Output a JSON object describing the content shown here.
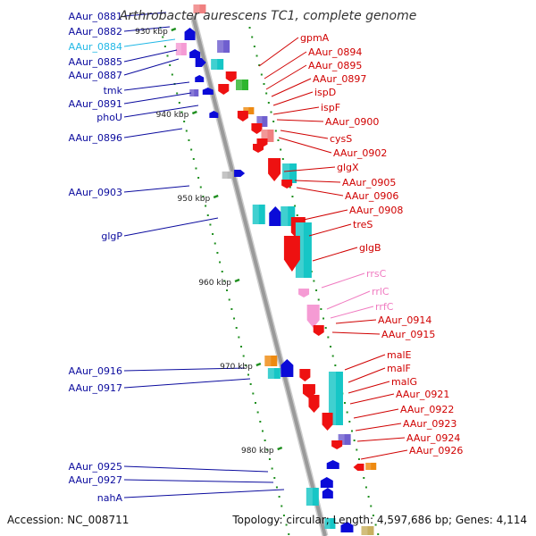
{
  "title": "Arthrobacter aurescens TC1, complete genome",
  "accession_text": "Accession: NC_008711",
  "summary_text": "Topology: circular; Length: 4,597,686 bp; Genes: 4,114",
  "colors": {
    "backbone": "#9a9a9a",
    "blue": "#0b0bd8",
    "red": "#ee1111",
    "cyan": "#16c6c6",
    "pink": "#f59bd4",
    "green": "#2fb52f",
    "orange": "#ee8a11",
    "purple": "#6f5fcf",
    "salmon": "#f08080",
    "ticks": "#1f8f1f",
    "label_blue": "#0b0b9e",
    "label_red": "#d00000",
    "label_cyan": "#22b8e6",
    "label_pink": "#f07ac0"
  },
  "scale_ticks": [
    "930 kbp",
    "940 kbp",
    "950 kbp",
    "960 kbp",
    "970 kbp",
    "980 kbp"
  ],
  "left_labels": [
    {
      "text": "AAur_0881",
      "color": "label_blue"
    },
    {
      "text": "AAur_0882",
      "color": "label_blue"
    },
    {
      "text": "AAur_0884",
      "color": "label_cyan"
    },
    {
      "text": "AAur_0885",
      "color": "label_blue"
    },
    {
      "text": "AAur_0887",
      "color": "label_blue"
    },
    {
      "text": "tmk",
      "color": "label_blue"
    },
    {
      "text": "AAur_0891",
      "color": "label_blue"
    },
    {
      "text": "phoU",
      "color": "label_blue"
    },
    {
      "text": "AAur_0896",
      "color": "label_blue"
    },
    {
      "text": "AAur_0903",
      "color": "label_blue"
    },
    {
      "text": "glgP",
      "color": "label_blue"
    },
    {
      "text": "AAur_0916",
      "color": "label_blue"
    },
    {
      "text": "AAur_0917",
      "color": "label_blue"
    },
    {
      "text": "AAur_0925",
      "color": "label_blue"
    },
    {
      "text": "AAur_0927",
      "color": "label_blue"
    },
    {
      "text": "nahA",
      "color": "label_blue"
    }
  ],
  "right_labels": [
    {
      "text": "gpmA",
      "color": "label_red"
    },
    {
      "text": "AAur_0894",
      "color": "label_red"
    },
    {
      "text": "AAur_0895",
      "color": "label_red"
    },
    {
      "text": "AAur_0897",
      "color": "label_red"
    },
    {
      "text": "ispD",
      "color": "label_red"
    },
    {
      "text": "ispF",
      "color": "label_red"
    },
    {
      "text": "AAur_0900",
      "color": "label_red"
    },
    {
      "text": "cysS",
      "color": "label_red"
    },
    {
      "text": "AAur_0902",
      "color": "label_red"
    },
    {
      "text": "glgX",
      "color": "label_red"
    },
    {
      "text": "AAur_0905",
      "color": "label_red"
    },
    {
      "text": "AAur_0906",
      "color": "label_red"
    },
    {
      "text": "AAur_0908",
      "color": "label_red"
    },
    {
      "text": "treS",
      "color": "label_red"
    },
    {
      "text": "glgB",
      "color": "label_red"
    },
    {
      "text": "rrsC",
      "color": "label_pink"
    },
    {
      "text": "rrlC",
      "color": "label_pink"
    },
    {
      "text": "rrfC",
      "color": "label_pink"
    },
    {
      "text": "AAur_0914",
      "color": "label_red"
    },
    {
      "text": "AAur_0915",
      "color": "label_red"
    },
    {
      "text": "malE",
      "color": "label_red"
    },
    {
      "text": "malF",
      "color": "label_red"
    },
    {
      "text": "malG",
      "color": "label_red"
    },
    {
      "text": "AAur_0921",
      "color": "label_red"
    },
    {
      "text": "AAur_0922",
      "color": "label_red"
    },
    {
      "text": "AAur_0923",
      "color": "label_red"
    },
    {
      "text": "AAur_0924",
      "color": "label_red"
    },
    {
      "text": "AAur_0926",
      "color": "label_red"
    }
  ]
}
